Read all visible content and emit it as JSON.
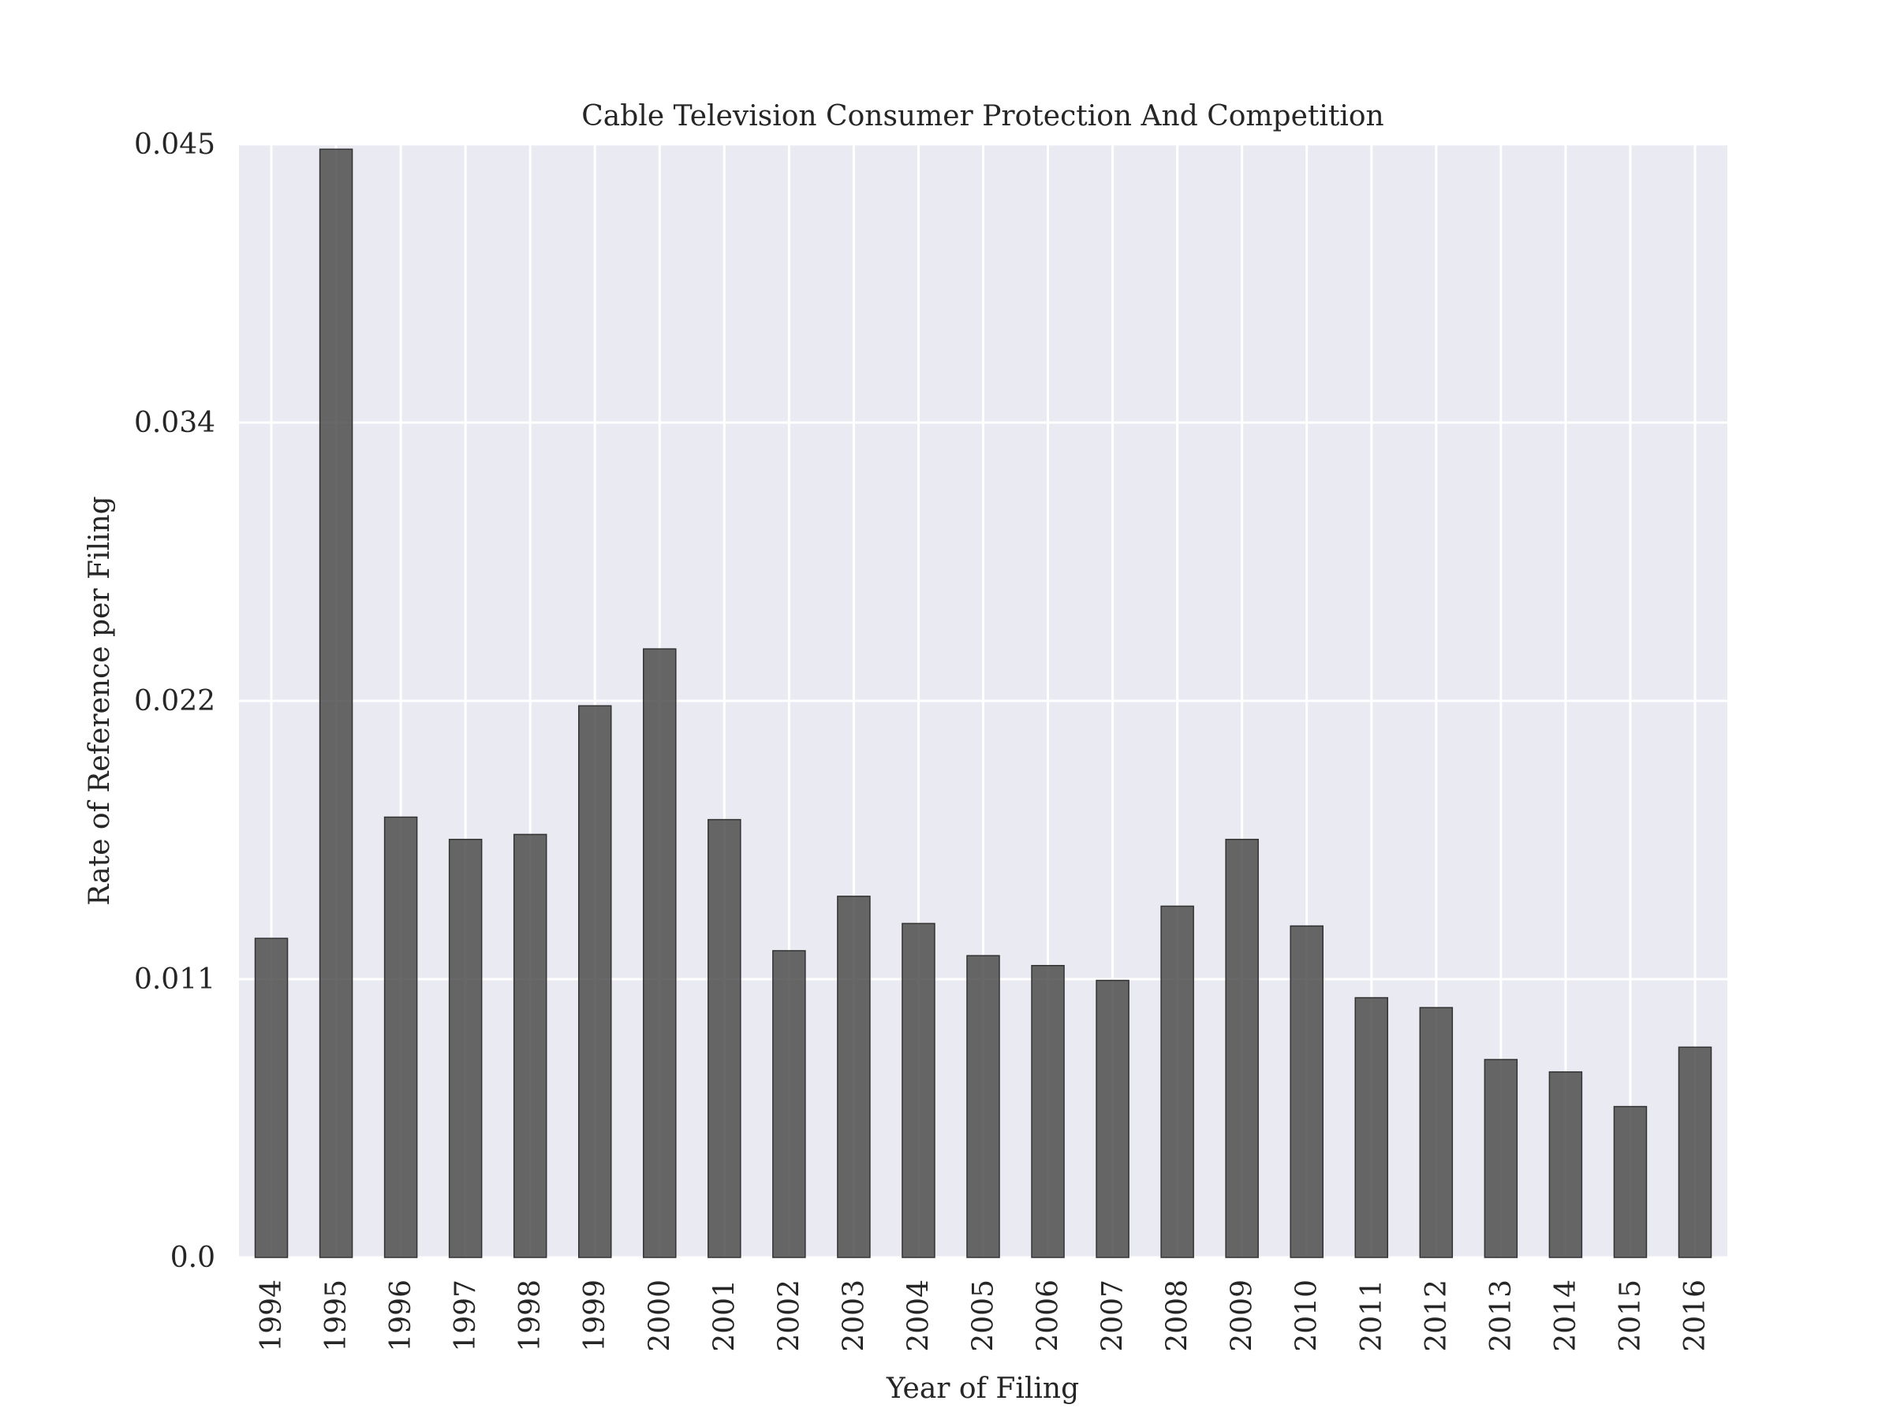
{
  "chart_data": {
    "type": "bar",
    "title": "Cable Television Consumer Protection And Competition",
    "xlabel": "Year of Filing",
    "ylabel": "Rate of Reference per Filing",
    "categories": [
      "1994",
      "1995",
      "1996",
      "1997",
      "1998",
      "1999",
      "2000",
      "2001",
      "2002",
      "2003",
      "2004",
      "2005",
      "2006",
      "2007",
      "2008",
      "2009",
      "2010",
      "2011",
      "2012",
      "2013",
      "2014",
      "2015",
      "2016"
    ],
    "values": [
      0.0129,
      0.0448,
      0.0178,
      0.0169,
      0.0171,
      0.0223,
      0.0246,
      0.0177,
      0.0124,
      0.0146,
      0.0135,
      0.0122,
      0.0118,
      0.0112,
      0.0142,
      0.0169,
      0.0134,
      0.0105,
      0.0101,
      0.008,
      0.0075,
      0.0061,
      0.0085
    ],
    "yticks": [
      "0.0",
      "0.011",
      "0.022",
      "0.034",
      "0.045"
    ],
    "ytick_values": [
      0.0,
      0.01125,
      0.0225,
      0.03375,
      0.045
    ],
    "ylim": [
      0,
      0.045
    ],
    "grid": true,
    "colors": {
      "bar": "#4d4d4d",
      "bar_edge": "#333333",
      "plot_background": "#eaeaf2",
      "grid": "#ffffff"
    }
  }
}
